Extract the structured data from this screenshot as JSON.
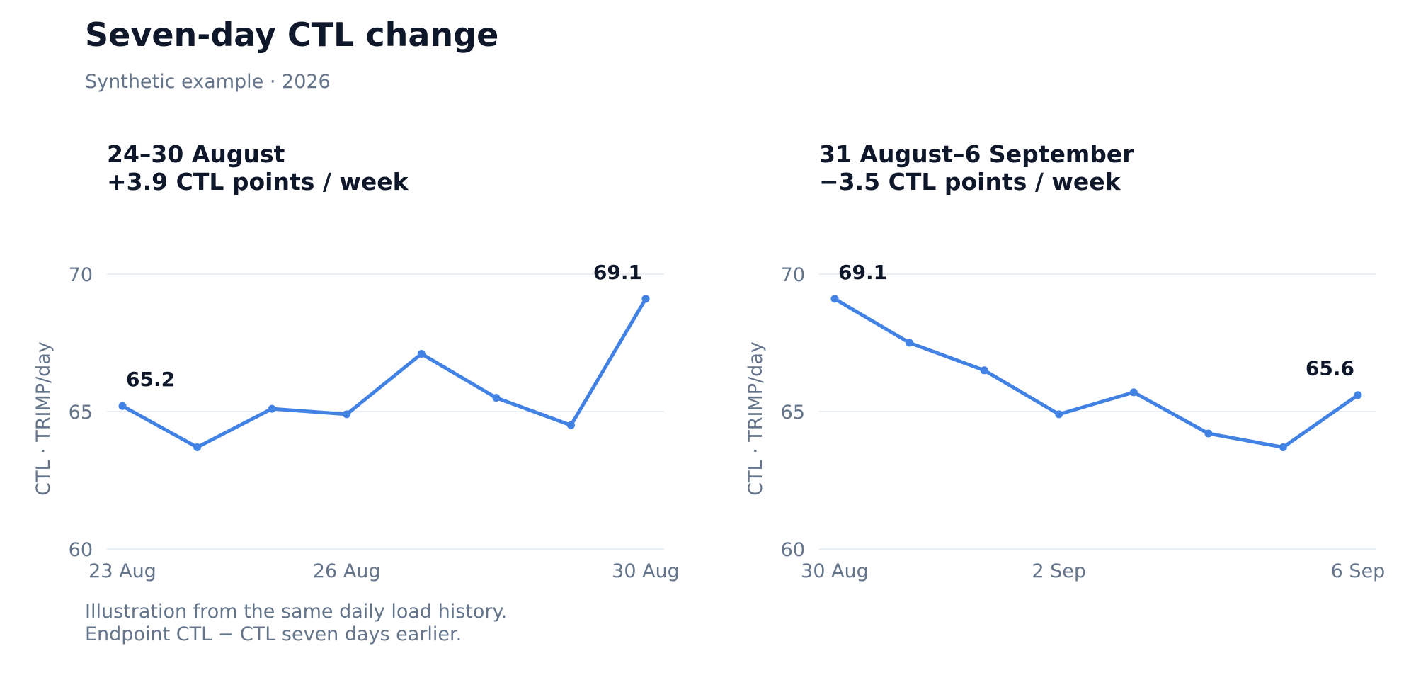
{
  "header": {
    "title": "Seven-day CTL change",
    "subtitle": "Synthetic example · 2026"
  },
  "notes": [
    "Illustration from the same daily load history.",
    "Endpoint CTL − CTL seven days earlier."
  ],
  "colors": {
    "line": "#4182e4",
    "grid": "#e2e8f0",
    "text": "#0f172a",
    "muted": "#64748b"
  },
  "chart_data": [
    {
      "type": "line",
      "title": "24–30 August",
      "subtitle": "+3.9 CTL points / week",
      "ylabel": "CTL · TRIMP/day",
      "ylim": [
        60,
        70
      ],
      "yticks": [
        60,
        65,
        70
      ],
      "x": [
        "23 Aug",
        "24 Aug",
        "25 Aug",
        "26 Aug",
        "27 Aug",
        "28 Aug",
        "29 Aug",
        "30 Aug"
      ],
      "xtick_labels": [
        "23 Aug",
        "26 Aug",
        "30 Aug"
      ],
      "series": [
        {
          "values": [
            65.2,
            63.7,
            65.1,
            64.9,
            67.1,
            65.5,
            64.5,
            69.1
          ]
        }
      ],
      "annotations": [
        {
          "x": "23 Aug",
          "label": "65.2"
        },
        {
          "x": "30 Aug",
          "label": "69.1"
        }
      ]
    },
    {
      "type": "line",
      "title": "31 August–6 September",
      "subtitle": "−3.5 CTL points / week",
      "ylabel": "CTL · TRIMP/day",
      "ylim": [
        60,
        70
      ],
      "yticks": [
        60,
        65,
        70
      ],
      "x": [
        "30 Aug",
        "31 Aug",
        "1 Sep",
        "2 Sep",
        "3 Sep",
        "4 Sep",
        "5 Sep",
        "6 Sep"
      ],
      "xtick_labels": [
        "30 Aug",
        "2 Sep",
        "6 Sep"
      ],
      "series": [
        {
          "values": [
            69.1,
            67.5,
            66.5,
            64.9,
            65.7,
            64.2,
            63.7,
            65.6
          ]
        }
      ],
      "annotations": [
        {
          "x": "30 Aug",
          "label": "69.1"
        },
        {
          "x": "6 Sep",
          "label": "65.6"
        }
      ]
    }
  ]
}
